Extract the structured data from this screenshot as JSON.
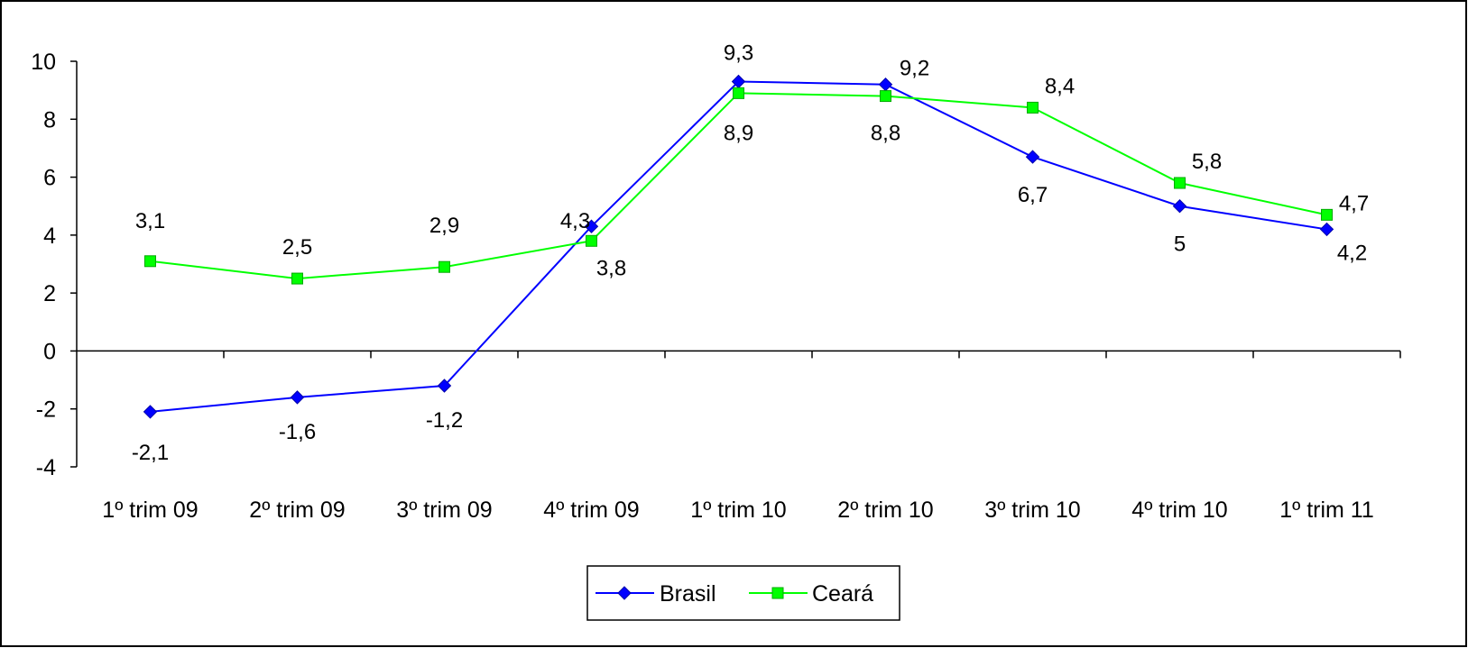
{
  "chart_data": {
    "type": "line",
    "categories": [
      "1º trim 09",
      "2º trim 09",
      "3º trim 09",
      "4º trim 09",
      "1º trim 10",
      "2º trim 10",
      "3º trim 10",
      "4º trim 10",
      "1º trim 11"
    ],
    "series": [
      {
        "name": "Brasil",
        "color": "#0000ff",
        "marker": "diamond",
        "values": [
          -2.1,
          -1.6,
          -1.2,
          4.3,
          9.3,
          9.2,
          6.7,
          5.0,
          4.2
        ],
        "labels": [
          "-2,1",
          "-1,6",
          "-1,2",
          "4,3",
          "9,3",
          "9,2",
          "6,7",
          "5",
          "4,2"
        ]
      },
      {
        "name": "Ceará",
        "color": "#00ff00",
        "marker": "square",
        "values": [
          3.1,
          2.5,
          2.9,
          3.8,
          8.9,
          8.8,
          8.4,
          5.8,
          4.7
        ],
        "labels": [
          "3,1",
          "2,5",
          "2,9",
          "3,8",
          "8,9",
          "8,8",
          "8,4",
          "5,8",
          "4,7"
        ]
      }
    ],
    "yticks": [
      10,
      8,
      6,
      4,
      2,
      0,
      -2,
      -4
    ],
    "ytick_labels": [
      "10",
      "8",
      "6",
      "4",
      "2",
      "0",
      "-2",
      "-4"
    ],
    "ylim": [
      -4,
      10
    ],
    "grid": false,
    "legend": "bottom-center"
  }
}
